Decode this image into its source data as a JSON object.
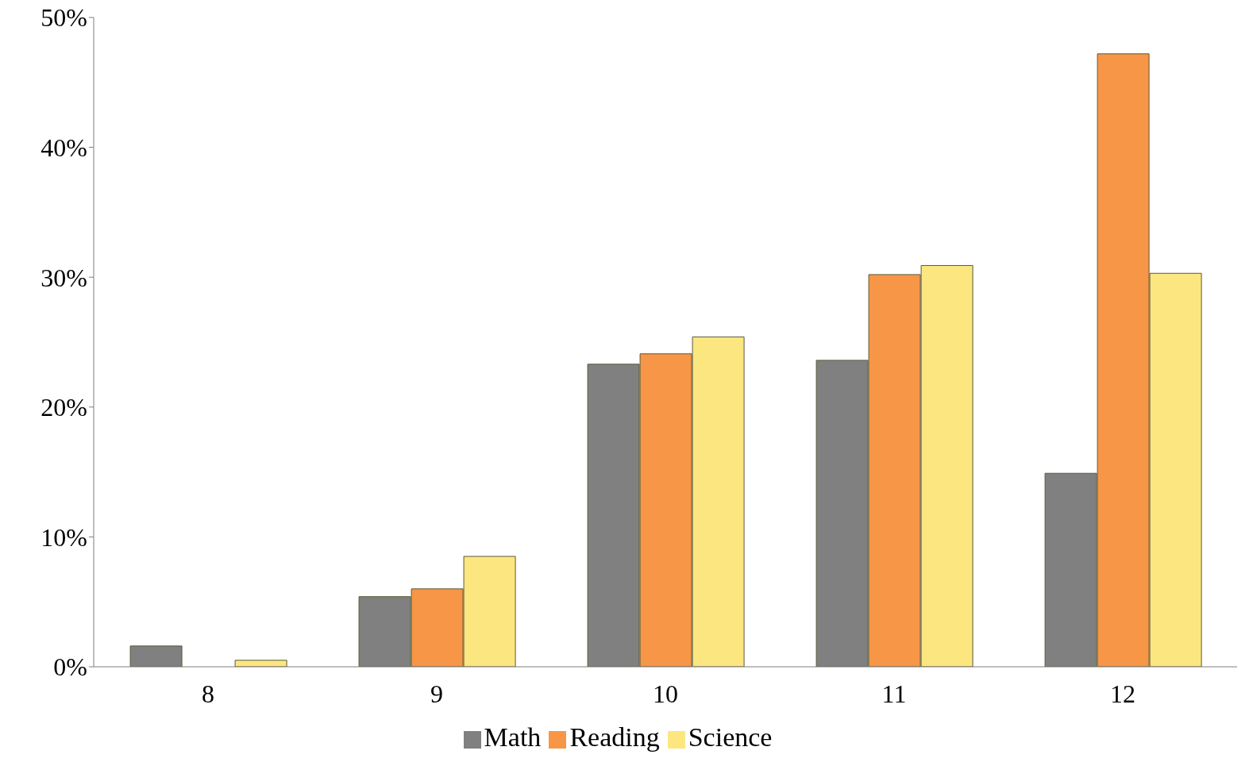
{
  "chart_data": {
    "type": "bar",
    "categories": [
      "8",
      "9",
      "10",
      "11",
      "12"
    ],
    "series": [
      {
        "name": "Math",
        "color": "#808080",
        "values": [
          1.6,
          5.4,
          23.3,
          23.6,
          14.9
        ]
      },
      {
        "name": "Reading",
        "color": "#f79646",
        "values": [
          0,
          6.0,
          24.1,
          30.2,
          47.2
        ]
      },
      {
        "name": "Science",
        "color": "#fce680",
        "values": [
          0.5,
          8.5,
          25.4,
          30.9,
          30.3
        ]
      }
    ],
    "ylim": [
      0,
      50
    ],
    "yticks": [
      {
        "value": 0,
        "label": "0%"
      },
      {
        "value": 10,
        "label": "10%"
      },
      {
        "value": 20,
        "label": "20%"
      },
      {
        "value": 30,
        "label": "30%"
      },
      {
        "value": 40,
        "label": "40%"
      },
      {
        "value": 50,
        "label": "50%"
      }
    ],
    "grid": false,
    "legend": "bottom"
  }
}
